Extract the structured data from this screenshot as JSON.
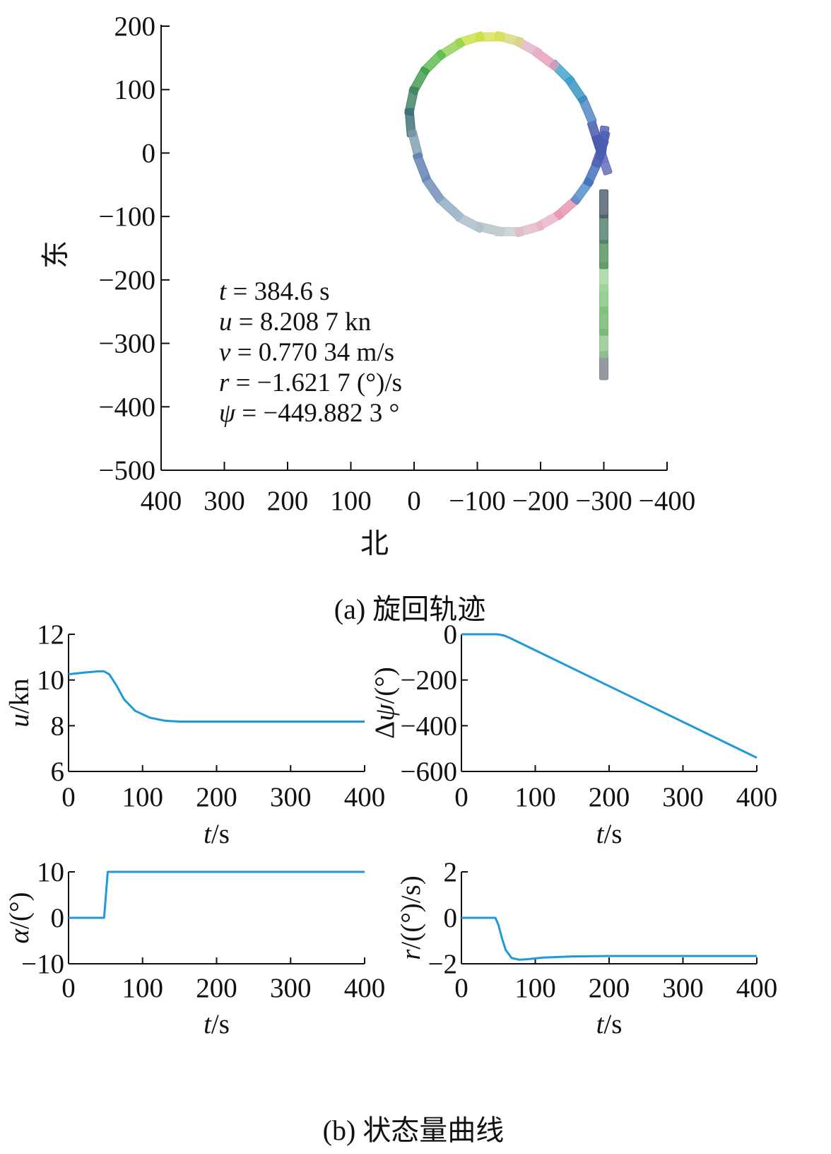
{
  "chart_data": [
    {
      "id": "a",
      "type": "scatter",
      "caption": "(a) 旋回轨迹",
      "xlabel": "北",
      "ylabel": "东",
      "xlim": [
        400,
        -400
      ],
      "ylim": [
        -500,
        200
      ],
      "xticks": [
        "400",
        "300",
        "200",
        "100",
        "0",
        "−100",
        "−200",
        "−300",
        "−400"
      ],
      "yticks": [
        "200",
        "100",
        "0",
        "−100",
        "−200",
        "−300",
        "−400",
        "−500"
      ],
      "annotations": [
        "t = 384.6 s",
        "u = 8.208 7 kn",
        "v = 0.770 34 m/s",
        "r = −1.621 7 (°)/s",
        "ψ = −449.882 3 °"
      ],
      "series": [
        {
          "x": [
            -300,
            -300,
            -300,
            -300,
            -300,
            -300,
            -300,
            -300
          ],
          "y": [
            -335,
            -300,
            -265,
            -230,
            -195,
            -160,
            -120,
            -80
          ],
          "colors": [
            "#7a8088",
            "#8ec48a",
            "#6fb56a",
            "#7cc47a",
            "#9fd49a",
            "#4f8f59",
            "#4a7a6a",
            "#4a5a6a"
          ]
        },
        {
          "x": [
            -300,
            -294,
            -287,
            -274,
            -256,
            -234,
            -208,
            -180,
            -150,
            -120,
            -88,
            -58,
            -30,
            -8,
            4,
            6,
            -2,
            -12,
            -30,
            -58,
            -88,
            -120,
            -150,
            -182,
            -214,
            -242,
            -266,
            -283,
            -294,
            -298,
            -299
          ],
          "y": [
            -12,
            6,
            28,
            68,
            100,
            127,
            148,
            167,
            180,
            183,
            179,
            164,
            143,
            114,
            82,
            48,
            14,
            -22,
            -57,
            -88,
            -110,
            -120,
            -124,
            -120,
            -106,
            -86,
            -60,
            -30,
            0,
            12,
            20
          ],
          "colors": [
            "#5a66b8",
            "#6a78c8",
            "#3f4fa8",
            "#4a7fc0",
            "#2f8ec0",
            "#3aa0cc",
            "#e89ab8",
            "#e2b0c8",
            "#d8d87a",
            "#d8e050",
            "#c8e040",
            "#8ed050",
            "#58b848",
            "#3a9a4a",
            "#3a8060",
            "#3a6a70",
            "#7a9aac",
            "#5a7ab0",
            "#6a88b8",
            "#8aa8c0",
            "#a8bcc8",
            "#b0c0c8",
            "#c4cccc",
            "#e0b8c8",
            "#eab0c8",
            "#e890b0",
            "#4a88c8",
            "#3a6ab8",
            "#5060b0",
            "#4a5cb0",
            "#4a5cb0"
          ]
        }
      ]
    },
    {
      "id": "u",
      "type": "line",
      "xlabel": "t/s",
      "ylabel": "u/kn",
      "xlim": [
        0,
        400
      ],
      "ylim": [
        6,
        12
      ],
      "xticks": [
        "0",
        "100",
        "200",
        "300",
        "400"
      ],
      "yticks": [
        "12",
        "10",
        "8",
        "6"
      ],
      "series": [
        {
          "color": "#1f9ad6",
          "x": [
            0,
            20,
            40,
            48,
            55,
            65,
            75,
            90,
            110,
            130,
            150,
            200,
            400
          ],
          "y": [
            10.25,
            10.32,
            10.38,
            10.38,
            10.25,
            9.75,
            9.15,
            8.65,
            8.35,
            8.22,
            8.18,
            8.18,
            8.18
          ]
        }
      ]
    },
    {
      "id": "psi",
      "type": "line",
      "xlabel": "t/s",
      "ylabel": "Δψ/(°)",
      "xlim": [
        0,
        400
      ],
      "ylim": [
        -600,
        0
      ],
      "xticks": [
        "0",
        "100",
        "200",
        "300",
        "400"
      ],
      "yticks": [
        "0",
        "−200",
        "−400",
        "−600"
      ],
      "series": [
        {
          "color": "#1f9ad6",
          "x": [
            0,
            48,
            52,
            58,
            65,
            400
          ],
          "y": [
            0,
            0,
            -2,
            -6,
            -15,
            -540
          ]
        }
      ]
    },
    {
      "id": "alpha",
      "type": "line",
      "xlabel": "t/s",
      "ylabel": "α/(°)",
      "xlim": [
        0,
        400
      ],
      "ylim": [
        -10,
        10
      ],
      "xticks": [
        "0",
        "100",
        "200",
        "300",
        "400"
      ],
      "yticks": [
        "10",
        "0",
        "−10"
      ],
      "series": [
        {
          "color": "#1f9ad6",
          "x": [
            0,
            48,
            50,
            53,
            400
          ],
          "y": [
            0,
            0,
            4,
            10,
            10
          ]
        }
      ]
    },
    {
      "id": "r",
      "type": "line",
      "xlabel": "t/s",
      "ylabel": "r/((°)/s)",
      "xlim": [
        0,
        400
      ],
      "ylim": [
        -2,
        2
      ],
      "xticks": [
        "0",
        "100",
        "200",
        "300",
        "400"
      ],
      "yticks": [
        "2",
        "0",
        "−2"
      ],
      "series": [
        {
          "color": "#1f9ad6",
          "x": [
            0,
            46,
            50,
            55,
            60,
            68,
            78,
            90,
            110,
            150,
            200,
            400
          ],
          "y": [
            0,
            0,
            -0.3,
            -0.9,
            -1.4,
            -1.75,
            -1.82,
            -1.8,
            -1.73,
            -1.68,
            -1.66,
            -1.66
          ]
        }
      ]
    }
  ],
  "caption_b": "(b) 状态量曲线"
}
